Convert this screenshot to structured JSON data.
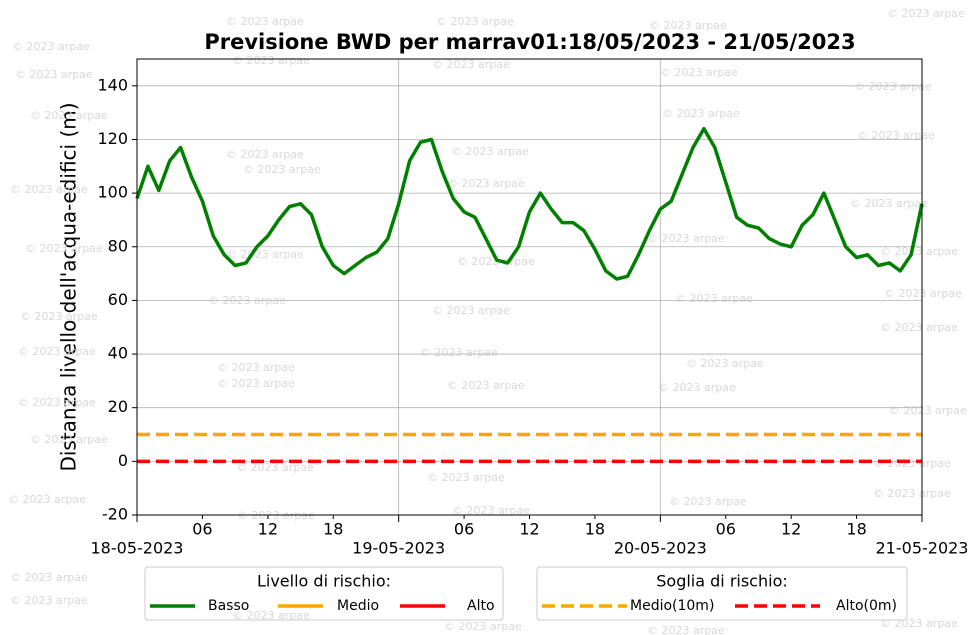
{
  "chart_data": {
    "type": "line",
    "title": "Previsione BWD per marrav01:18/05/2023 - 21/05/2023",
    "y_label": "Distanza livello dell'acqua-edifici (m)",
    "watermark": "© 2023 arpae",
    "x": [
      "2023-05-18T00:00",
      "2023-05-18T01:00",
      "2023-05-18T02:00",
      "2023-05-18T03:00",
      "2023-05-18T04:00",
      "2023-05-18T05:00",
      "2023-05-18T06:00",
      "2023-05-18T07:00",
      "2023-05-18T08:00",
      "2023-05-18T09:00",
      "2023-05-18T10:00",
      "2023-05-18T11:00",
      "2023-05-18T12:00",
      "2023-05-18T13:00",
      "2023-05-18T14:00",
      "2023-05-18T15:00",
      "2023-05-18T16:00",
      "2023-05-18T17:00",
      "2023-05-18T18:00",
      "2023-05-18T19:00",
      "2023-05-18T20:00",
      "2023-05-18T21:00",
      "2023-05-18T22:00",
      "2023-05-18T23:00",
      "2023-05-19T00:00",
      "2023-05-19T01:00",
      "2023-05-19T02:00",
      "2023-05-19T03:00",
      "2023-05-19T04:00",
      "2023-05-19T05:00",
      "2023-05-19T06:00",
      "2023-05-19T07:00",
      "2023-05-19T08:00",
      "2023-05-19T09:00",
      "2023-05-19T10:00",
      "2023-05-19T11:00",
      "2023-05-19T12:00",
      "2023-05-19T13:00",
      "2023-05-19T14:00",
      "2023-05-19T15:00",
      "2023-05-19T16:00",
      "2023-05-19T17:00",
      "2023-05-19T18:00",
      "2023-05-19T19:00",
      "2023-05-19T20:00",
      "2023-05-19T21:00",
      "2023-05-19T22:00",
      "2023-05-19T23:00",
      "2023-05-20T00:00",
      "2023-05-20T01:00",
      "2023-05-20T02:00",
      "2023-05-20T03:00",
      "2023-05-20T04:00",
      "2023-05-20T05:00",
      "2023-05-20T06:00",
      "2023-05-20T07:00",
      "2023-05-20T08:00",
      "2023-05-20T09:00",
      "2023-05-20T10:00",
      "2023-05-20T11:00",
      "2023-05-20T12:00",
      "2023-05-20T13:00",
      "2023-05-20T14:00",
      "2023-05-20T15:00",
      "2023-05-20T16:00",
      "2023-05-20T17:00",
      "2023-05-20T18:00",
      "2023-05-20T19:00",
      "2023-05-20T20:00",
      "2023-05-20T21:00",
      "2023-05-20T22:00",
      "2023-05-20T23:00",
      "2023-05-21T00:00"
    ],
    "series": [
      {
        "color": "#008000",
        "values": [
          98,
          110,
          101,
          112,
          117,
          106,
          97,
          84,
          77,
          73,
          74,
          80,
          84,
          90,
          95,
          96,
          92,
          80,
          73,
          70,
          73,
          76,
          78,
          83,
          96,
          112,
          119,
          120,
          108,
          98,
          93,
          91,
          83,
          75,
          74,
          80,
          93,
          100,
          94,
          89,
          89,
          86,
          79,
          71,
          68,
          69,
          77,
          86,
          94,
          97,
          107,
          117,
          124,
          117,
          104,
          91,
          88,
          87,
          83,
          81,
          80,
          88,
          92,
          100,
          90,
          80,
          76,
          77,
          73,
          74,
          71,
          77,
          96
        ]
      }
    ],
    "thresholds": [
      {
        "name": "Medio(10m)",
        "color": "#ffa500",
        "value": 10
      },
      {
        "name": "Alto(0m)",
        "color": "#ff0000",
        "value": 0
      }
    ],
    "risk_legend": {
      "title": "Livello di rischio:",
      "entries": [
        {
          "name": "Basso",
          "color": "#008000"
        },
        {
          "name": "Medio",
          "color": "#ffa500"
        },
        {
          "name": "Alto",
          "color": "#ff0000"
        }
      ]
    },
    "threshold_legend_title": "Soglia di rischio:",
    "xlim": [
      "2023-05-18T00:00",
      "2023-05-21T00:00"
    ],
    "xticks": [
      {
        "value": "2023-05-18T00:00",
        "label": "18-05-2023"
      },
      {
        "value": "2023-05-19T00:00",
        "label": "19-05-2023"
      },
      {
        "value": "2023-05-20T00:00",
        "label": "20-05-2023"
      },
      {
        "value": "2023-05-21T00:00",
        "label": "21-05-2023"
      }
    ],
    "xminorticks": [
      {
        "value": "2023-05-18T06:00",
        "label": "06"
      },
      {
        "value": "2023-05-18T12:00",
        "label": "12"
      },
      {
        "value": "2023-05-18T18:00",
        "label": "18"
      },
      {
        "value": "2023-05-19T06:00",
        "label": "06"
      },
      {
        "value": "2023-05-19T12:00",
        "label": "12"
      },
      {
        "value": "2023-05-19T18:00",
        "label": "18"
      },
      {
        "value": "2023-05-20T06:00",
        "label": "06"
      },
      {
        "value": "2023-05-20T12:00",
        "label": "12"
      },
      {
        "value": "2023-05-20T18:00",
        "label": "18"
      }
    ],
    "ylim": [
      -20,
      150
    ],
    "yticks": [
      -20,
      0,
      20,
      40,
      60,
      80,
      100,
      120,
      140
    ],
    "grid": true
  }
}
